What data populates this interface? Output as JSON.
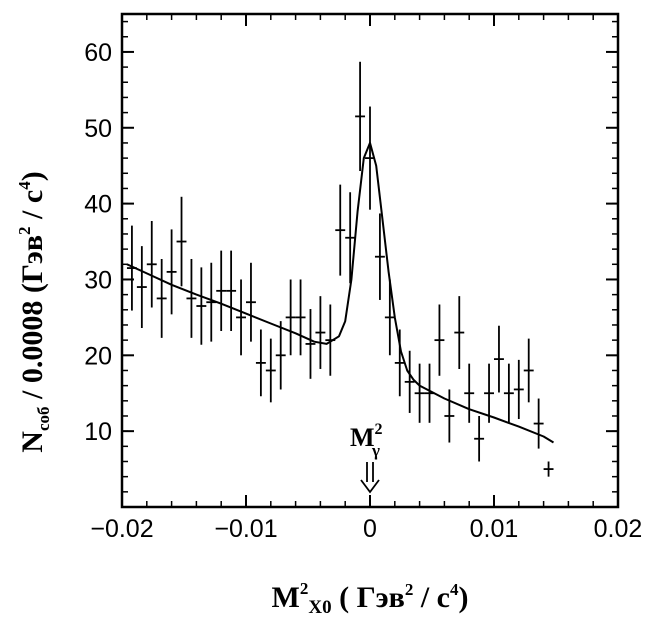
{
  "chart_data": {
    "type": "scatter",
    "title": "",
    "xlabel": {
      "main": "M",
      "sup": "2",
      "sub": "X0",
      "units_open": " ( Гэв",
      "units_sup1": "2",
      "units_mid": " / c",
      "units_sup2": "4",
      "units_close": ")"
    },
    "ylabel": {
      "main": "N",
      "sub": "соб",
      "rest": " / 0.0008 (Гэв",
      "sup1": "2",
      "mid": " / c",
      "sup2": "4",
      "close": ")"
    },
    "xlim": [
      -0.02,
      0.02
    ],
    "ylim": [
      0,
      65
    ],
    "xticks": [
      -0.02,
      -0.01,
      0,
      0.01,
      0.02
    ],
    "xtick_labels": [
      "−0.02",
      "−0.01",
      "0",
      "0.01",
      "0.02"
    ],
    "yticks": [
      10,
      20,
      30,
      40,
      50,
      60
    ],
    "ytick_labels": [
      "10",
      "20",
      "30",
      "40",
      "50",
      "60"
    ],
    "grid": false,
    "annotation": {
      "text": "M",
      "sup": "2",
      "sub": "γ",
      "x": 0
    },
    "series": [
      {
        "kind": "points",
        "x": [
          -0.0192,
          -0.0184,
          -0.0176,
          -0.0168,
          -0.016,
          -0.0152,
          -0.0144,
          -0.0136,
          -0.0128,
          -0.012,
          -0.0112,
          -0.0104,
          -0.0096,
          -0.0088,
          -0.008,
          -0.0072,
          -0.0064,
          -0.0056,
          -0.0048,
          -0.004,
          -0.0032,
          -0.0024,
          -0.0016,
          -0.0008,
          0.0,
          0.0008,
          0.0016,
          0.0024,
          0.0032,
          0.004,
          0.0048,
          0.0056,
          0.0064,
          0.0072,
          0.008,
          0.0088,
          0.0096,
          0.0104,
          0.0112,
          0.012,
          0.0128,
          0.0136,
          0.0144
        ],
        "y": [
          31.5,
          29.0,
          32.0,
          27.5,
          31.0,
          35.0,
          27.5,
          26.5,
          27.0,
          28.5,
          28.5,
          25.0,
          27.0,
          19.0,
          18.0,
          20.0,
          25.0,
          25.0,
          21.5,
          23.0,
          22.0,
          36.5,
          35.5,
          51.5,
          46.0,
          33.0,
          25.0,
          19.0,
          16.5,
          15.0,
          15.0,
          22.0,
          12.0,
          23.0,
          15.0,
          9.0,
          15.0,
          19.5,
          15.0,
          15.5,
          18.0,
          11.0,
          5.0
        ],
        "yerr": [
          5.6,
          5.4,
          5.7,
          5.2,
          5.6,
          5.9,
          5.2,
          5.1,
          5.2,
          5.3,
          5.3,
          5.0,
          5.2,
          4.4,
          4.2,
          4.5,
          5.0,
          5.0,
          4.6,
          4.8,
          4.7,
          6.0,
          6.0,
          7.2,
          6.8,
          5.7,
          5.0,
          4.4,
          4.1,
          3.9,
          3.9,
          4.7,
          3.5,
          4.8,
          3.9,
          3.0,
          3.9,
          4.4,
          3.9,
          3.9,
          4.2,
          3.3,
          1.0
        ],
        "xerr": 0.0004
      },
      {
        "kind": "fit-line",
        "x": [
          -0.0196,
          -0.018,
          -0.016,
          -0.014,
          -0.012,
          -0.01,
          -0.008,
          -0.006,
          -0.0045,
          -0.0035,
          -0.0025,
          -0.002,
          -0.0015,
          -0.001,
          -0.0005,
          0.0,
          0.0005,
          0.001,
          0.0015,
          0.002,
          0.0025,
          0.003,
          0.0035,
          0.004,
          0.006,
          0.008,
          0.01,
          0.012,
          0.014,
          0.0148
        ],
        "y": [
          32.0,
          30.8,
          29.3,
          28.0,
          26.8,
          25.5,
          24.2,
          22.9,
          21.8,
          21.5,
          22.5,
          24.5,
          30.0,
          39.0,
          46.0,
          48.0,
          45.0,
          38.0,
          31.0,
          25.0,
          20.5,
          18.0,
          16.8,
          16.0,
          14.3,
          12.9,
          11.8,
          10.6,
          9.3,
          8.5
        ]
      }
    ]
  }
}
